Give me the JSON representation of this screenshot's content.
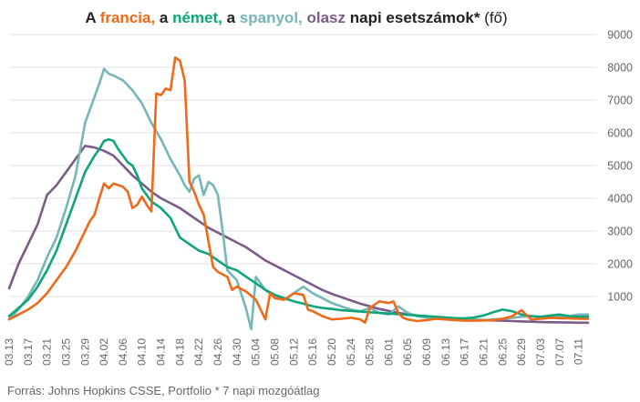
{
  "title": {
    "p1": "A ",
    "france": "francia,",
    "p2": " a ",
    "germany": "német,",
    "p3": " a ",
    "spain": "spanyol,",
    "p4": " ",
    "italy": "olasz",
    "p5": " napi esetszámok*",
    "unit": " (fő)"
  },
  "source": "Forrás: Johns Hopkins CSSE, Portfolio  * 7 napi mozgóátlag",
  "chart_data": {
    "type": "line",
    "ylim": [
      0,
      9000
    ],
    "yticks": [
      1000,
      2000,
      3000,
      4000,
      5000,
      6000,
      7000,
      8000,
      9000
    ],
    "xticks": [
      "03.13",
      "03.17",
      "03.21",
      "03.25",
      "03.29",
      "04.02",
      "04.06",
      "04.10",
      "04.14",
      "04.18",
      "04.22",
      "04.26",
      "04.30",
      "05.04",
      "05.08",
      "05.12",
      "05.16",
      "05.20",
      "05.24",
      "05.28",
      "06.01",
      "06.05",
      "06.09",
      "06.13",
      "06.17",
      "06.21",
      "06.25",
      "06.29",
      "07.03",
      "07.07",
      "07.11"
    ],
    "grid": true,
    "colors": {
      "france": "#ee6a1a",
      "germany": "#0fa57a",
      "spain": "#76b6b8",
      "italy": "#7b5c86"
    },
    "series": [
      {
        "key": "italy",
        "color": "#7b5c86",
        "points": [
          [
            0,
            1250
          ],
          [
            2,
            2000
          ],
          [
            4,
            2600
          ],
          [
            6,
            3200
          ],
          [
            8,
            4100
          ],
          [
            10,
            4400
          ],
          [
            12,
            4800
          ],
          [
            14,
            5200
          ],
          [
            16,
            5600
          ],
          [
            18,
            5550
          ],
          [
            20,
            5450
          ],
          [
            22,
            5300
          ],
          [
            24,
            5000
          ],
          [
            26,
            4700
          ],
          [
            28,
            4450
          ],
          [
            30,
            4200
          ],
          [
            32,
            4000
          ],
          [
            34,
            3850
          ],
          [
            36,
            3700
          ],
          [
            38,
            3500
          ],
          [
            40,
            3300
          ],
          [
            42,
            3100
          ],
          [
            44,
            2950
          ],
          [
            46,
            2800
          ],
          [
            48,
            2650
          ],
          [
            50,
            2500
          ],
          [
            52,
            2300
          ],
          [
            54,
            2100
          ],
          [
            56,
            1950
          ],
          [
            58,
            1800
          ],
          [
            60,
            1650
          ],
          [
            62,
            1500
          ],
          [
            64,
            1350
          ],
          [
            66,
            1200
          ],
          [
            68,
            1080
          ],
          [
            70,
            980
          ],
          [
            72,
            880
          ],
          [
            74,
            780
          ],
          [
            76,
            700
          ],
          [
            78,
            620
          ],
          [
            80,
            560
          ],
          [
            82,
            500
          ],
          [
            84,
            460
          ],
          [
            86,
            420
          ],
          [
            88,
            380
          ],
          [
            90,
            350
          ],
          [
            92,
            330
          ],
          [
            94,
            310
          ],
          [
            96,
            300
          ],
          [
            98,
            290
          ],
          [
            100,
            280
          ],
          [
            102,
            270
          ],
          [
            104,
            260
          ],
          [
            106,
            250
          ],
          [
            108,
            240
          ],
          [
            110,
            230
          ],
          [
            112,
            220
          ],
          [
            114,
            215
          ],
          [
            116,
            210
          ],
          [
            118,
            205
          ],
          [
            120,
            200
          ],
          [
            122,
            200
          ]
        ]
      },
      {
        "key": "spain",
        "color": "#76b6b8",
        "points": [
          [
            0,
            300
          ],
          [
            2,
            600
          ],
          [
            4,
            1000
          ],
          [
            6,
            1500
          ],
          [
            8,
            2200
          ],
          [
            10,
            2800
          ],
          [
            12,
            3700
          ],
          [
            14,
            4700
          ],
          [
            16,
            6300
          ],
          [
            18,
            7100
          ],
          [
            19,
            7500
          ],
          [
            20,
            7950
          ],
          [
            21,
            7800
          ],
          [
            22,
            7750
          ],
          [
            24,
            7600
          ],
          [
            26,
            7300
          ],
          [
            28,
            6900
          ],
          [
            30,
            6300
          ],
          [
            32,
            5800
          ],
          [
            34,
            5200
          ],
          [
            36,
            4700
          ],
          [
            37,
            4400
          ],
          [
            38,
            4200
          ],
          [
            39,
            4600
          ],
          [
            40,
            4700
          ],
          [
            41,
            4100
          ],
          [
            42,
            4500
          ],
          [
            43,
            4400
          ],
          [
            44,
            4100
          ],
          [
            45,
            3000
          ],
          [
            46,
            1800
          ],
          [
            48,
            1500
          ],
          [
            50,
            600
          ],
          [
            51,
            0
          ],
          [
            52,
            1600
          ],
          [
            53,
            1400
          ],
          [
            54,
            1200
          ],
          [
            56,
            1000
          ],
          [
            58,
            900
          ],
          [
            60,
            1100
          ],
          [
            62,
            1300
          ],
          [
            64,
            1100
          ],
          [
            66,
            950
          ],
          [
            68,
            800
          ],
          [
            70,
            700
          ],
          [
            72,
            600
          ],
          [
            74,
            550
          ],
          [
            76,
            650
          ],
          [
            78,
            500
          ],
          [
            80,
            450
          ],
          [
            82,
            700
          ],
          [
            84,
            500
          ],
          [
            86,
            400
          ],
          [
            88,
            350
          ],
          [
            90,
            320
          ],
          [
            92,
            300
          ],
          [
            94,
            280
          ],
          [
            96,
            270
          ],
          [
            98,
            300
          ],
          [
            100,
            280
          ],
          [
            102,
            300
          ],
          [
            104,
            320
          ],
          [
            106,
            350
          ],
          [
            108,
            380
          ],
          [
            110,
            400
          ],
          [
            112,
            380
          ],
          [
            114,
            360
          ],
          [
            116,
            380
          ],
          [
            118,
            400
          ],
          [
            120,
            450
          ],
          [
            122,
            450
          ]
        ]
      },
      {
        "key": "germany",
        "color": "#0fa57a",
        "points": [
          [
            0,
            400
          ],
          [
            2,
            650
          ],
          [
            4,
            900
          ],
          [
            6,
            1300
          ],
          [
            8,
            1800
          ],
          [
            10,
            2400
          ],
          [
            12,
            3200
          ],
          [
            14,
            4000
          ],
          [
            16,
            4800
          ],
          [
            18,
            5300
          ],
          [
            19,
            5500
          ],
          [
            20,
            5750
          ],
          [
            21,
            5800
          ],
          [
            22,
            5750
          ],
          [
            23,
            5500
          ],
          [
            24,
            5300
          ],
          [
            25,
            5100
          ],
          [
            26,
            5000
          ],
          [
            27,
            4700
          ],
          [
            28,
            4300
          ],
          [
            30,
            3900
          ],
          [
            32,
            3700
          ],
          [
            34,
            3400
          ],
          [
            35,
            3100
          ],
          [
            36,
            2800
          ],
          [
            38,
            2600
          ],
          [
            40,
            2400
          ],
          [
            42,
            2300
          ],
          [
            44,
            2100
          ],
          [
            46,
            1900
          ],
          [
            48,
            1800
          ],
          [
            50,
            1600
          ],
          [
            52,
            1400
          ],
          [
            54,
            1200
          ],
          [
            56,
            1050
          ],
          [
            58,
            950
          ],
          [
            60,
            850
          ],
          [
            62,
            780
          ],
          [
            64,
            700
          ],
          [
            66,
            650
          ],
          [
            68,
            620
          ],
          [
            70,
            580
          ],
          [
            72,
            560
          ],
          [
            74,
            540
          ],
          [
            76,
            520
          ],
          [
            78,
            500
          ],
          [
            80,
            480
          ],
          [
            82,
            460
          ],
          [
            84,
            440
          ],
          [
            86,
            420
          ],
          [
            88,
            400
          ],
          [
            90,
            380
          ],
          [
            92,
            360
          ],
          [
            94,
            340
          ],
          [
            96,
            330
          ],
          [
            98,
            360
          ],
          [
            100,
            420
          ],
          [
            102,
            520
          ],
          [
            104,
            600
          ],
          [
            106,
            550
          ],
          [
            108,
            450
          ],
          [
            110,
            400
          ],
          [
            112,
            380
          ],
          [
            114,
            420
          ],
          [
            116,
            450
          ],
          [
            118,
            400
          ],
          [
            120,
            380
          ],
          [
            122,
            380
          ]
        ]
      },
      {
        "key": "france",
        "color": "#ee6a1a",
        "points": [
          [
            0,
            300
          ],
          [
            2,
            450
          ],
          [
            4,
            600
          ],
          [
            6,
            800
          ],
          [
            8,
            1100
          ],
          [
            10,
            1500
          ],
          [
            12,
            1900
          ],
          [
            14,
            2400
          ],
          [
            16,
            3000
          ],
          [
            17,
            3300
          ],
          [
            18,
            3500
          ],
          [
            19,
            4000
          ],
          [
            20,
            4450
          ],
          [
            21,
            4300
          ],
          [
            22,
            4450
          ],
          [
            24,
            4350
          ],
          [
            25,
            4200
          ],
          [
            26,
            3700
          ],
          [
            27,
            3800
          ],
          [
            28,
            4050
          ],
          [
            29,
            3800
          ],
          [
            30,
            3600
          ],
          [
            31,
            7200
          ],
          [
            32,
            7150
          ],
          [
            33,
            7350
          ],
          [
            34,
            7300
          ],
          [
            35,
            8300
          ],
          [
            36,
            8200
          ],
          [
            37,
            7600
          ],
          [
            38,
            4500
          ],
          [
            39,
            4200
          ],
          [
            40,
            3800
          ],
          [
            41,
            3500
          ],
          [
            42,
            2700
          ],
          [
            43,
            1900
          ],
          [
            44,
            1750
          ],
          [
            46,
            1600
          ],
          [
            47,
            1200
          ],
          [
            48,
            1300
          ],
          [
            50,
            1150
          ],
          [
            52,
            900
          ],
          [
            53,
            600
          ],
          [
            54,
            300
          ],
          [
            55,
            1100
          ],
          [
            56,
            950
          ],
          [
            58,
            900
          ],
          [
            60,
            1100
          ],
          [
            62,
            1050
          ],
          [
            63,
            600
          ],
          [
            64,
            550
          ],
          [
            66,
            400
          ],
          [
            68,
            300
          ],
          [
            70,
            320
          ],
          [
            72,
            350
          ],
          [
            74,
            300
          ],
          [
            75,
            200
          ],
          [
            76,
            650
          ],
          [
            78,
            850
          ],
          [
            80,
            800
          ],
          [
            81,
            850
          ],
          [
            82,
            500
          ],
          [
            83,
            350
          ],
          [
            84,
            300
          ],
          [
            86,
            250
          ],
          [
            88,
            280
          ],
          [
            90,
            320
          ],
          [
            92,
            300
          ],
          [
            94,
            280
          ],
          [
            96,
            260
          ],
          [
            98,
            260
          ],
          [
            100,
            270
          ],
          [
            102,
            280
          ],
          [
            104,
            320
          ],
          [
            106,
            400
          ],
          [
            108,
            580
          ],
          [
            110,
            300
          ],
          [
            112,
            320
          ],
          [
            114,
            350
          ],
          [
            116,
            340
          ],
          [
            118,
            330
          ],
          [
            120,
            320
          ],
          [
            122,
            320
          ]
        ]
      }
    ]
  }
}
